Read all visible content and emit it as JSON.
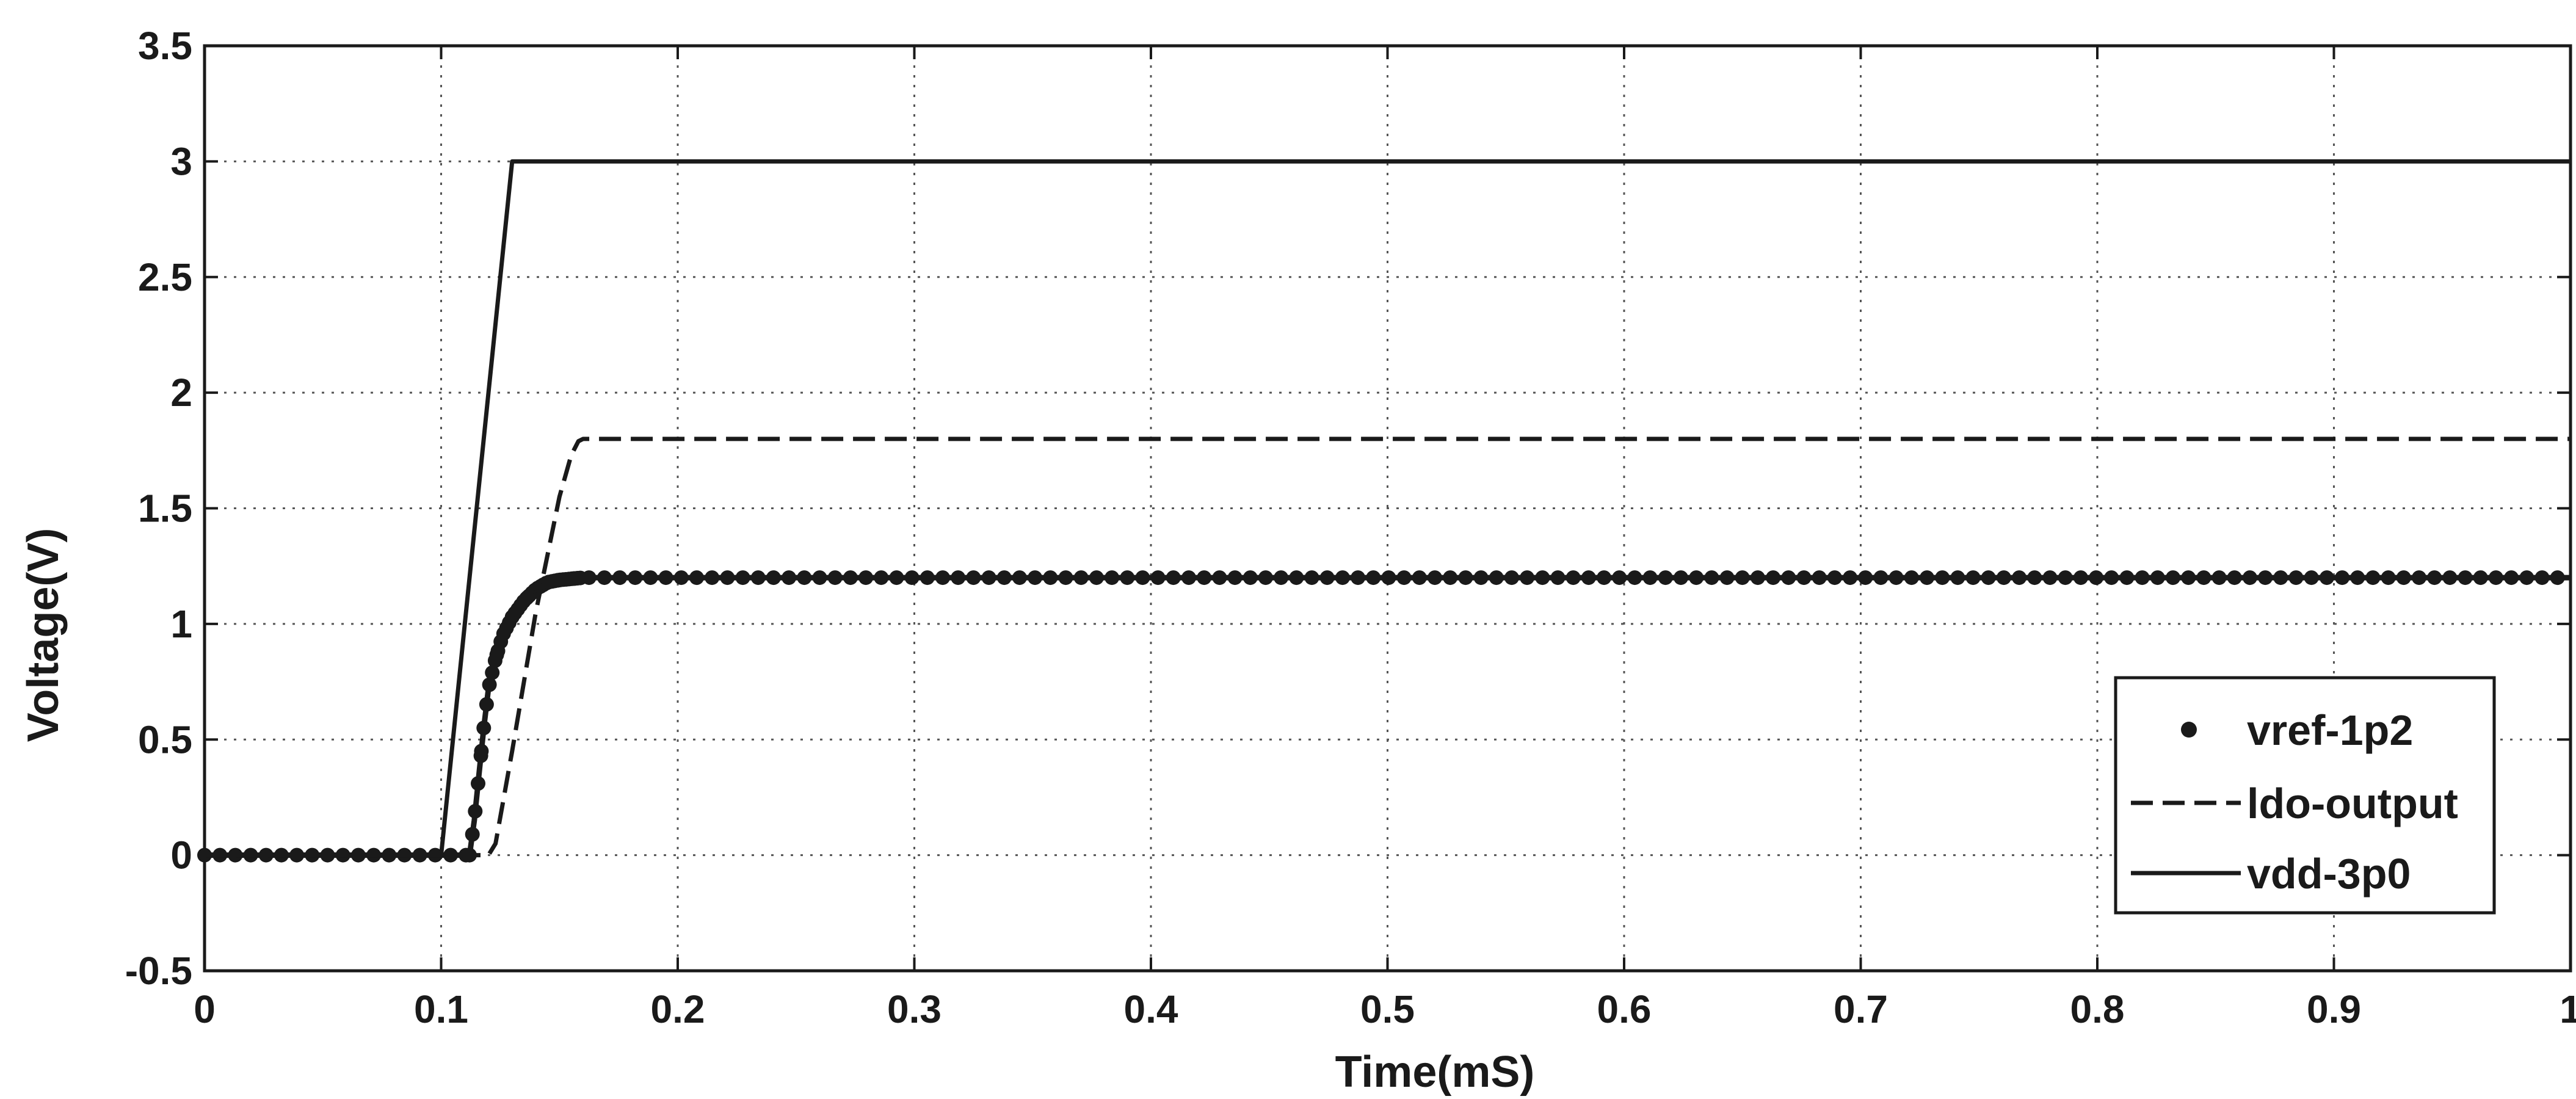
{
  "chart_data": {
    "type": "line",
    "title": "",
    "xlabel": "Time(mS)",
    "ylabel": "Voltage(V)",
    "xlim": [
      0,
      1
    ],
    "ylim": [
      -0.5,
      3.5
    ],
    "xticks": [
      0,
      0.1,
      0.2,
      0.3,
      0.4,
      0.5,
      0.6,
      0.7,
      0.8,
      0.9,
      1
    ],
    "yticks": [
      -0.5,
      0,
      0.5,
      1,
      1.5,
      2,
      2.5,
      3,
      3.5
    ],
    "xtick_labels": [
      "0",
      "0.1",
      "0.2",
      "0.3",
      "0.4",
      "0.5",
      "0.6",
      "0.7",
      "0.8",
      "0.9",
      "1"
    ],
    "ytick_labels": [
      "-0.5",
      "0",
      "0.5",
      "1",
      "1.5",
      "2",
      "2.5",
      "3",
      "3.5"
    ],
    "grid": true,
    "legend_position": "bottom-right",
    "series": [
      {
        "name": "vref-1p2",
        "style": "dotted-markers",
        "color": "#1a1a1a",
        "x": [
          0,
          0.112,
          0.114,
          0.116,
          0.118,
          0.12,
          0.123,
          0.126,
          0.13,
          0.135,
          0.14,
          0.145,
          0.15,
          0.16,
          0.17,
          1
        ],
        "y": [
          0,
          0,
          0.15,
          0.35,
          0.55,
          0.72,
          0.85,
          0.95,
          1.03,
          1.1,
          1.15,
          1.18,
          1.19,
          1.2,
          1.2,
          1.2
        ]
      },
      {
        "name": "ldo-output",
        "style": "dashed",
        "color": "#1a1a1a",
        "x": [
          0,
          0.12,
          0.123,
          0.13,
          0.14,
          0.15,
          0.155,
          0.158,
          0.16,
          1
        ],
        "y": [
          0,
          0,
          0.05,
          0.45,
          1.05,
          1.55,
          1.73,
          1.79,
          1.8,
          1.8
        ]
      },
      {
        "name": "vdd-3p0",
        "style": "solid",
        "color": "#1a1a1a",
        "x": [
          0,
          0.1,
          0.13,
          1
        ],
        "y": [
          0,
          0,
          3,
          3
        ]
      }
    ]
  }
}
